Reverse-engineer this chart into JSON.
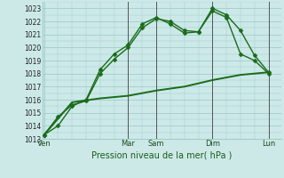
{
  "background_color": "#cce9e8",
  "grid_color": "#a0cccc",
  "line_color": "#1a6b1a",
  "xlabel": "Pression niveau de la mer( hPa )",
  "ylim": [
    1013,
    1023.5
  ],
  "yticks": [
    1013,
    1014,
    1015,
    1016,
    1017,
    1018,
    1019,
    1020,
    1021,
    1022,
    1023
  ],
  "x_day_labels": [
    "Ven",
    "Mar",
    "Sam",
    "Dim",
    "Lun"
  ],
  "x_day_positions": [
    0.0,
    3.0,
    4.0,
    6.0,
    8.0
  ],
  "xlim": [
    -0.05,
    8.45
  ],
  "vline_positions": [
    3.0,
    4.0,
    6.0,
    8.0
  ],
  "series": [
    {
      "x": [
        0.0,
        0.5,
        1.0,
        1.5,
        2.0,
        2.5,
        3.0,
        3.5,
        4.0,
        4.5,
        5.0,
        5.5,
        6.0,
        6.5,
        7.0,
        7.5,
        8.0
      ],
      "y": [
        1013.3,
        1014.7,
        1015.6,
        1015.9,
        1018.0,
        1019.1,
        1020.0,
        1021.5,
        1022.2,
        1022.0,
        1021.3,
        1021.2,
        1022.8,
        1022.3,
        1019.5,
        1019.0,
        1018.0
      ],
      "marker": "D",
      "markersize": 2.5,
      "linewidth": 1.0
    },
    {
      "x": [
        0.0,
        0.5,
        1.0,
        1.5,
        2.0,
        2.5,
        3.0,
        3.5,
        4.0,
        4.5,
        5.0,
        5.5,
        6.0,
        6.5,
        7.0,
        7.5,
        8.0
      ],
      "y": [
        1013.3,
        1014.0,
        1015.5,
        1016.0,
        1018.3,
        1019.5,
        1020.2,
        1021.8,
        1022.3,
        1021.8,
        1021.1,
        1021.2,
        1023.0,
        1022.5,
        1021.3,
        1019.4,
        1018.1
      ],
      "marker": "D",
      "markersize": 2.5,
      "linewidth": 1.0
    },
    {
      "x": [
        0.0,
        1.0,
        2.0,
        3.0,
        4.0,
        5.0,
        6.0,
        7.0,
        8.0
      ],
      "y": [
        1013.3,
        1015.8,
        1016.1,
        1016.3,
        1016.7,
        1017.0,
        1017.5,
        1017.9,
        1018.1
      ],
      "marker": null,
      "markersize": 0,
      "linewidth": 1.4
    }
  ]
}
